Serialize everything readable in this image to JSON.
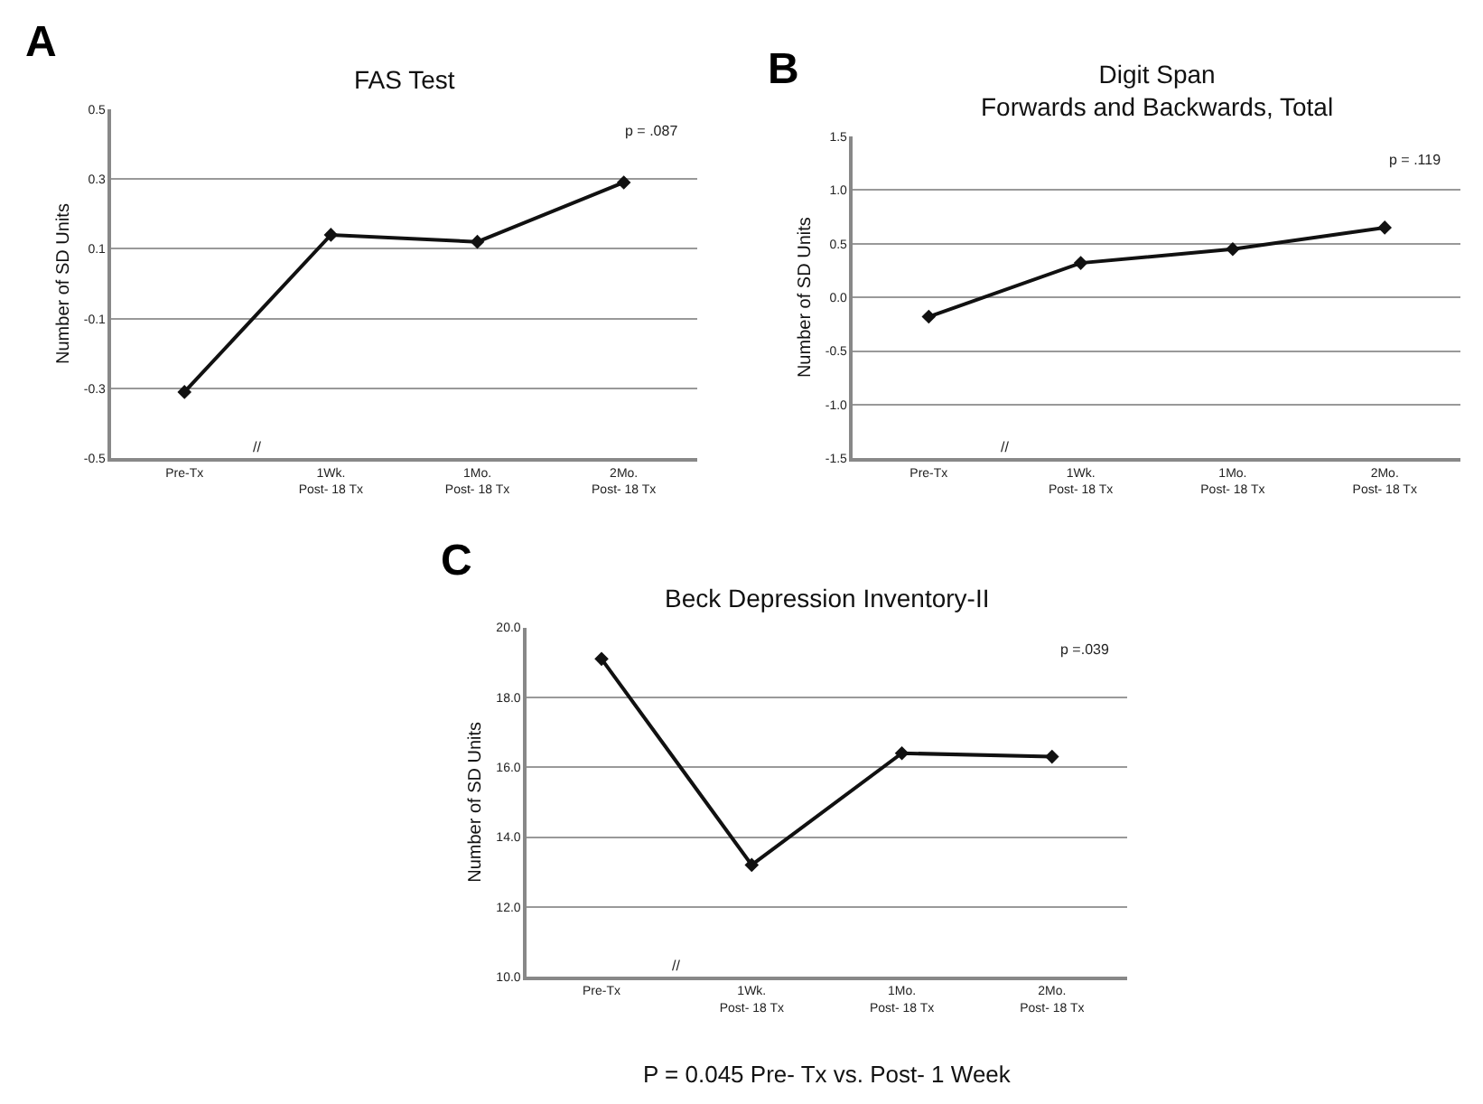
{
  "chart_data": [
    {
      "type": "line",
      "title": "FAS Test",
      "ylabel": "Number of SD Units",
      "categories": [
        "Pre-Tx",
        "1Wk.\nPost- 18 Tx",
        "1Mo.\nPost- 18 Tx",
        "2Mo.\nPost- 18 Tx"
      ],
      "series": [
        {
          "color": "#111111",
          "values": [
            -0.31,
            0.14,
            0.12,
            0.29
          ]
        }
      ],
      "ylim": [
        -0.5,
        0.5
      ],
      "yticks": [
        -0.5,
        -0.3,
        -0.1,
        0.1,
        0.3,
        0.5
      ],
      "grid": "y",
      "marker": "diamond",
      "line_style": "solid",
      "annotations": [
        "A",
        "p = .087",
        "//"
      ]
    },
    {
      "type": "line",
      "title": "Digit Span\nForwards and Backwards, Total",
      "ylabel": "Number of SD Units",
      "categories": [
        "Pre-Tx",
        "1Wk.\nPost- 18 Tx",
        "1Mo.\nPost- 18 Tx",
        "2Mo.\nPost- 18 Tx"
      ],
      "series": [
        {
          "color": "#111111",
          "values": [
            -0.18,
            0.32,
            0.45,
            0.65
          ]
        }
      ],
      "ylim": [
        -1.5,
        1.5
      ],
      "yticks": [
        {
          "value": -1.5,
          "label": "-1.5"
        },
        {
          "value": -1,
          "label": "-1.0"
        },
        {
          "value": -0.5,
          "label": "-0.5"
        },
        {
          "value": 0,
          "label": "0.0"
        },
        {
          "value": 0.5,
          "label": "0.5"
        },
        {
          "value": 1,
          "label": "1.0"
        },
        {
          "value": 1.5,
          "label": "1.5"
        }
      ],
      "grid": "y",
      "marker": "diamond",
      "line_style": "solid",
      "annotations": [
        "B",
        "p = .119",
        "//"
      ]
    },
    {
      "type": "line",
      "title": "Beck Depression Inventory-II",
      "ylabel": "Number of SD Units",
      "categories": [
        "Pre-Tx",
        "1Wk.\nPost- 18 Tx",
        "1Mo.\nPost- 18 Tx",
        "2Mo.\nPost- 18 Tx"
      ],
      "series": [
        {
          "color": "#111111",
          "values": [
            19.1,
            13.2,
            16.4,
            16.3
          ]
        }
      ],
      "ylim": [
        10,
        20
      ],
      "yticks": [
        {
          "value": 10,
          "label": "10.0"
        },
        {
          "value": 12,
          "label": "12.0"
        },
        {
          "value": 14,
          "label": "14.0"
        },
        {
          "value": 16,
          "label": "16.0"
        },
        {
          "value": 18,
          "label": "18.0"
        },
        {
          "value": 20,
          "label": "20.0"
        }
      ],
      "grid": "y",
      "marker": "diamond",
      "line_style": "solid",
      "annotations": [
        "C",
        "p =.039",
        "//",
        "P = 0.045 Pre- Tx vs. Post- 1 Week"
      ]
    }
  ]
}
